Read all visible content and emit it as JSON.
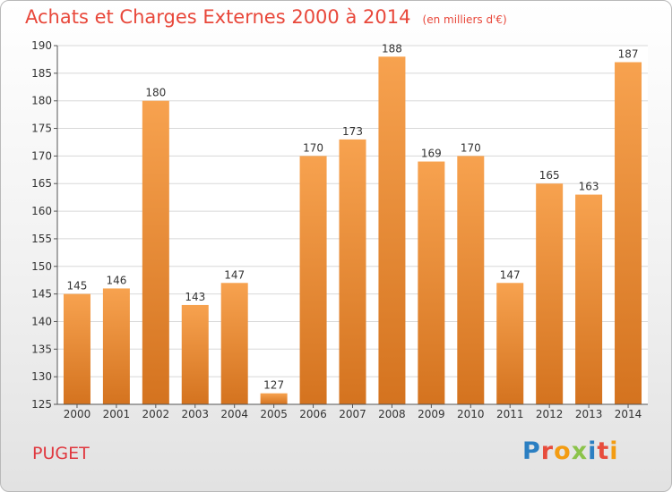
{
  "header": {
    "title": "Achats et Charges Externes 2000 à 2014",
    "unit": "(en milliers d'€)"
  },
  "location": "PUGET",
  "logo": {
    "text": "Proxiti",
    "letters": [
      {
        "ch": "P",
        "color": "#2b7fc2"
      },
      {
        "ch": "r",
        "color": "#e74c3c"
      },
      {
        "ch": "o",
        "color": "#f39c12"
      },
      {
        "ch": "x",
        "color": "#8bc34a"
      },
      {
        "ch": "i",
        "color": "#2b7fc2"
      },
      {
        "ch": "t",
        "color": "#e74c3c"
      },
      {
        "ch": "i",
        "color": "#f39c12"
      }
    ]
  },
  "colors": {
    "bar_top": "#f7a24f",
    "bar_bottom": "#d4731f",
    "title": "#e8473a",
    "axis_text": "#333333",
    "grid": "#d8d8d8",
    "plot_bg": "#ffffff"
  },
  "chart_data": {
    "type": "bar",
    "title": "Achats et Charges Externes 2000 à 2014",
    "subtitle": "(en milliers d'€)",
    "xlabel": "",
    "ylabel": "",
    "categories": [
      "2000",
      "2001",
      "2002",
      "2003",
      "2004",
      "2005",
      "2006",
      "2007",
      "2008",
      "2009",
      "2010",
      "2011",
      "2012",
      "2013",
      "2014"
    ],
    "values": [
      145,
      146,
      180,
      143,
      147,
      127,
      170,
      173,
      188,
      169,
      170,
      147,
      165,
      163,
      187
    ],
    "ylim": [
      125,
      190
    ],
    "yticks": [
      125,
      130,
      135,
      140,
      145,
      150,
      155,
      160,
      165,
      170,
      175,
      180,
      185,
      190
    ],
    "grid": true,
    "data_labels": true
  }
}
